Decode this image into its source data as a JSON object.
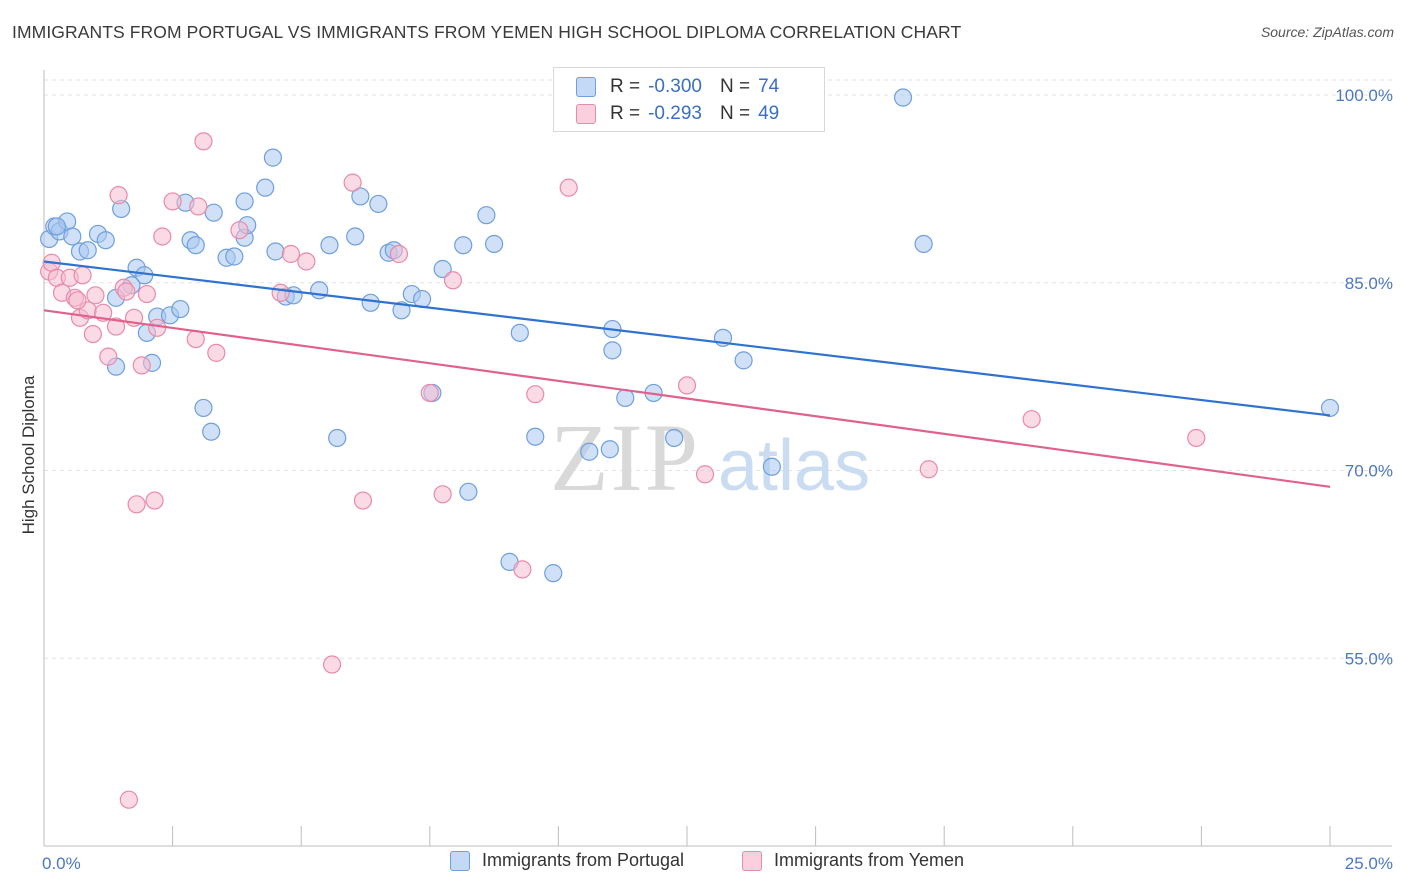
{
  "title": "IMMIGRANTS FROM PORTUGAL VS IMMIGRANTS FROM YEMEN HIGH SCHOOL DIPLOMA CORRELATION CHART",
  "source": "Source: ZipAtlas.com",
  "watermark": {
    "zip": "ZIP",
    "atlas": "atlas"
  },
  "legend": {
    "rows": [
      {
        "r_label": "R =",
        "r_value": "-0.300",
        "n_label": "N =",
        "n_value": "74"
      },
      {
        "r_label": "R =",
        "r_value": "-0.293",
        "n_label": "N =",
        "n_value": "49"
      }
    ]
  },
  "bottom_legend": [
    "Immigrants from Portugal",
    "Immigrants from Yemen"
  ],
  "colors": {
    "blue_fill": "#a9c8f0",
    "blue_stroke": "#6f9fdc",
    "blue_line": "#2f72d0",
    "pink_fill": "#f6bcd0",
    "pink_stroke": "#e98aa9",
    "pink_line": "#e0628c",
    "axis_text": "#4a78c2",
    "grid": "#e2e2e2"
  },
  "chart_data": {
    "type": "scatter",
    "title": "IMMIGRANTS FROM PORTUGAL VS IMMIGRANTS FROM YEMEN HIGH SCHOOL DIPLOMA CORRELATION CHART",
    "xlabel": "",
    "ylabel": "High School Diploma",
    "xlim": [
      0,
      25
    ],
    "ylim": [
      40,
      102
    ],
    "x_tick_labels": [
      "0.0%",
      "25.0%"
    ],
    "y_ticks": [
      55,
      70,
      85,
      100
    ],
    "y_tick_labels": [
      "55.0%",
      "70.0%",
      "85.0%",
      "100.0%"
    ],
    "grid": true,
    "series": [
      {
        "name": "Immigrants from Portugal",
        "color": "#a9c8f0",
        "r": -0.3,
        "n": 74,
        "trend": {
          "x": [
            0,
            25
          ],
          "y": [
            86.7,
            74.4
          ]
        },
        "points": [
          [
            0.1,
            88.5
          ],
          [
            0.2,
            89.5
          ],
          [
            0.3,
            89.1
          ],
          [
            0.45,
            89.9
          ],
          [
            0.55,
            88.7
          ],
          [
            0.7,
            87.5
          ],
          [
            0.85,
            87.6
          ],
          [
            1.05,
            88.9
          ],
          [
            1.2,
            88.4
          ],
          [
            1.5,
            90.9
          ],
          [
            1.8,
            86.2
          ],
          [
            1.95,
            85.6
          ],
          [
            2.2,
            82.3
          ],
          [
            2.45,
            82.4
          ],
          [
            2.75,
            91.4
          ],
          [
            2.85,
            88.4
          ],
          [
            2.95,
            88.0
          ],
          [
            3.3,
            90.6
          ],
          [
            3.55,
            87.0
          ],
          [
            3.7,
            87.1
          ],
          [
            3.9,
            88.6
          ],
          [
            3.95,
            89.6
          ],
          [
            3.9,
            91.5
          ],
          [
            4.3,
            92.6
          ],
          [
            4.45,
            95.0
          ],
          [
            4.5,
            87.5
          ],
          [
            4.7,
            83.9
          ],
          [
            4.85,
            84.0
          ],
          [
            5.35,
            84.4
          ],
          [
            5.55,
            88.0
          ],
          [
            6.05,
            88.7
          ],
          [
            6.15,
            91.9
          ],
          [
            6.35,
            83.4
          ],
          [
            6.5,
            91.3
          ],
          [
            6.7,
            87.4
          ],
          [
            6.8,
            87.6
          ],
          [
            6.95,
            82.8
          ],
          [
            7.15,
            84.1
          ],
          [
            7.35,
            83.7
          ],
          [
            7.55,
            76.2
          ],
          [
            7.75,
            86.1
          ],
          [
            8.15,
            88.0
          ],
          [
            8.6,
            90.4
          ],
          [
            8.75,
            88.1
          ],
          [
            9.25,
            81.0
          ],
          [
            9.55,
            72.7
          ],
          [
            10.6,
            71.5
          ],
          [
            11.0,
            71.7
          ],
          [
            11.05,
            79.6
          ],
          [
            11.05,
            81.3
          ],
          [
            11.3,
            75.8
          ],
          [
            11.85,
            76.2
          ],
          [
            12.25,
            72.6
          ],
          [
            13.2,
            80.6
          ],
          [
            13.6,
            78.8
          ],
          [
            14.15,
            70.3
          ],
          [
            1.4,
            83.8
          ],
          [
            1.7,
            84.8
          ],
          [
            2.0,
            81.0
          ],
          [
            2.1,
            78.6
          ],
          [
            2.65,
            82.9
          ],
          [
            3.1,
            75.0
          ],
          [
            3.25,
            73.1
          ],
          [
            5.7,
            72.6
          ],
          [
            8.25,
            68.3
          ],
          [
            9.05,
            62.7
          ],
          [
            9.9,
            61.8
          ],
          [
            10.6,
            99.1
          ],
          [
            13.9,
            99.6
          ],
          [
            16.7,
            99.8
          ],
          [
            17.1,
            88.1
          ],
          [
            25.0,
            75.0
          ],
          [
            1.4,
            78.3
          ],
          [
            0.25,
            89.5
          ]
        ]
      },
      {
        "name": "Immigrants from Yemen",
        "color": "#f6bcd0",
        "r": -0.293,
        "n": 49,
        "trend": {
          "x": [
            0,
            25
          ],
          "y": [
            82.8,
            68.7
          ]
        },
        "points": [
          [
            0.1,
            85.9
          ],
          [
            0.15,
            86.6
          ],
          [
            0.25,
            85.4
          ],
          [
            0.35,
            84.2
          ],
          [
            0.5,
            85.4
          ],
          [
            0.6,
            83.8
          ],
          [
            0.7,
            82.2
          ],
          [
            0.75,
            85.6
          ],
          [
            0.85,
            82.8
          ],
          [
            0.95,
            80.9
          ],
          [
            1.0,
            84.0
          ],
          [
            1.15,
            82.6
          ],
          [
            1.25,
            79.1
          ],
          [
            1.4,
            81.5
          ],
          [
            1.55,
            84.6
          ],
          [
            1.6,
            84.3
          ],
          [
            1.75,
            82.2
          ],
          [
            1.9,
            78.4
          ],
          [
            2.0,
            84.1
          ],
          [
            2.2,
            81.4
          ],
          [
            2.3,
            88.7
          ],
          [
            2.5,
            91.5
          ],
          [
            2.95,
            80.5
          ],
          [
            3.0,
            91.1
          ],
          [
            3.1,
            96.3
          ],
          [
            3.35,
            79.4
          ],
          [
            3.8,
            89.2
          ],
          [
            4.6,
            84.2
          ],
          [
            4.8,
            87.3
          ],
          [
            5.1,
            86.7
          ],
          [
            6.0,
            93.0
          ],
          [
            6.2,
            67.6
          ],
          [
            6.9,
            87.3
          ],
          [
            7.5,
            76.2
          ],
          [
            7.75,
            68.1
          ],
          [
            7.95,
            85.2
          ],
          [
            9.3,
            62.1
          ],
          [
            9.55,
            76.1
          ],
          [
            10.2,
            92.6
          ],
          [
            1.45,
            92.0
          ],
          [
            1.8,
            67.3
          ],
          [
            2.15,
            67.6
          ],
          [
            0.65,
            83.6
          ],
          [
            12.5,
            76.8
          ],
          [
            12.85,
            69.7
          ],
          [
            17.2,
            70.1
          ],
          [
            19.2,
            74.1
          ],
          [
            22.4,
            72.6
          ],
          [
            1.65,
            43.7
          ]
        ]
      }
    ],
    "extra_points": {
      "pink_low": [
        5.6,
        54.5
      ]
    }
  }
}
